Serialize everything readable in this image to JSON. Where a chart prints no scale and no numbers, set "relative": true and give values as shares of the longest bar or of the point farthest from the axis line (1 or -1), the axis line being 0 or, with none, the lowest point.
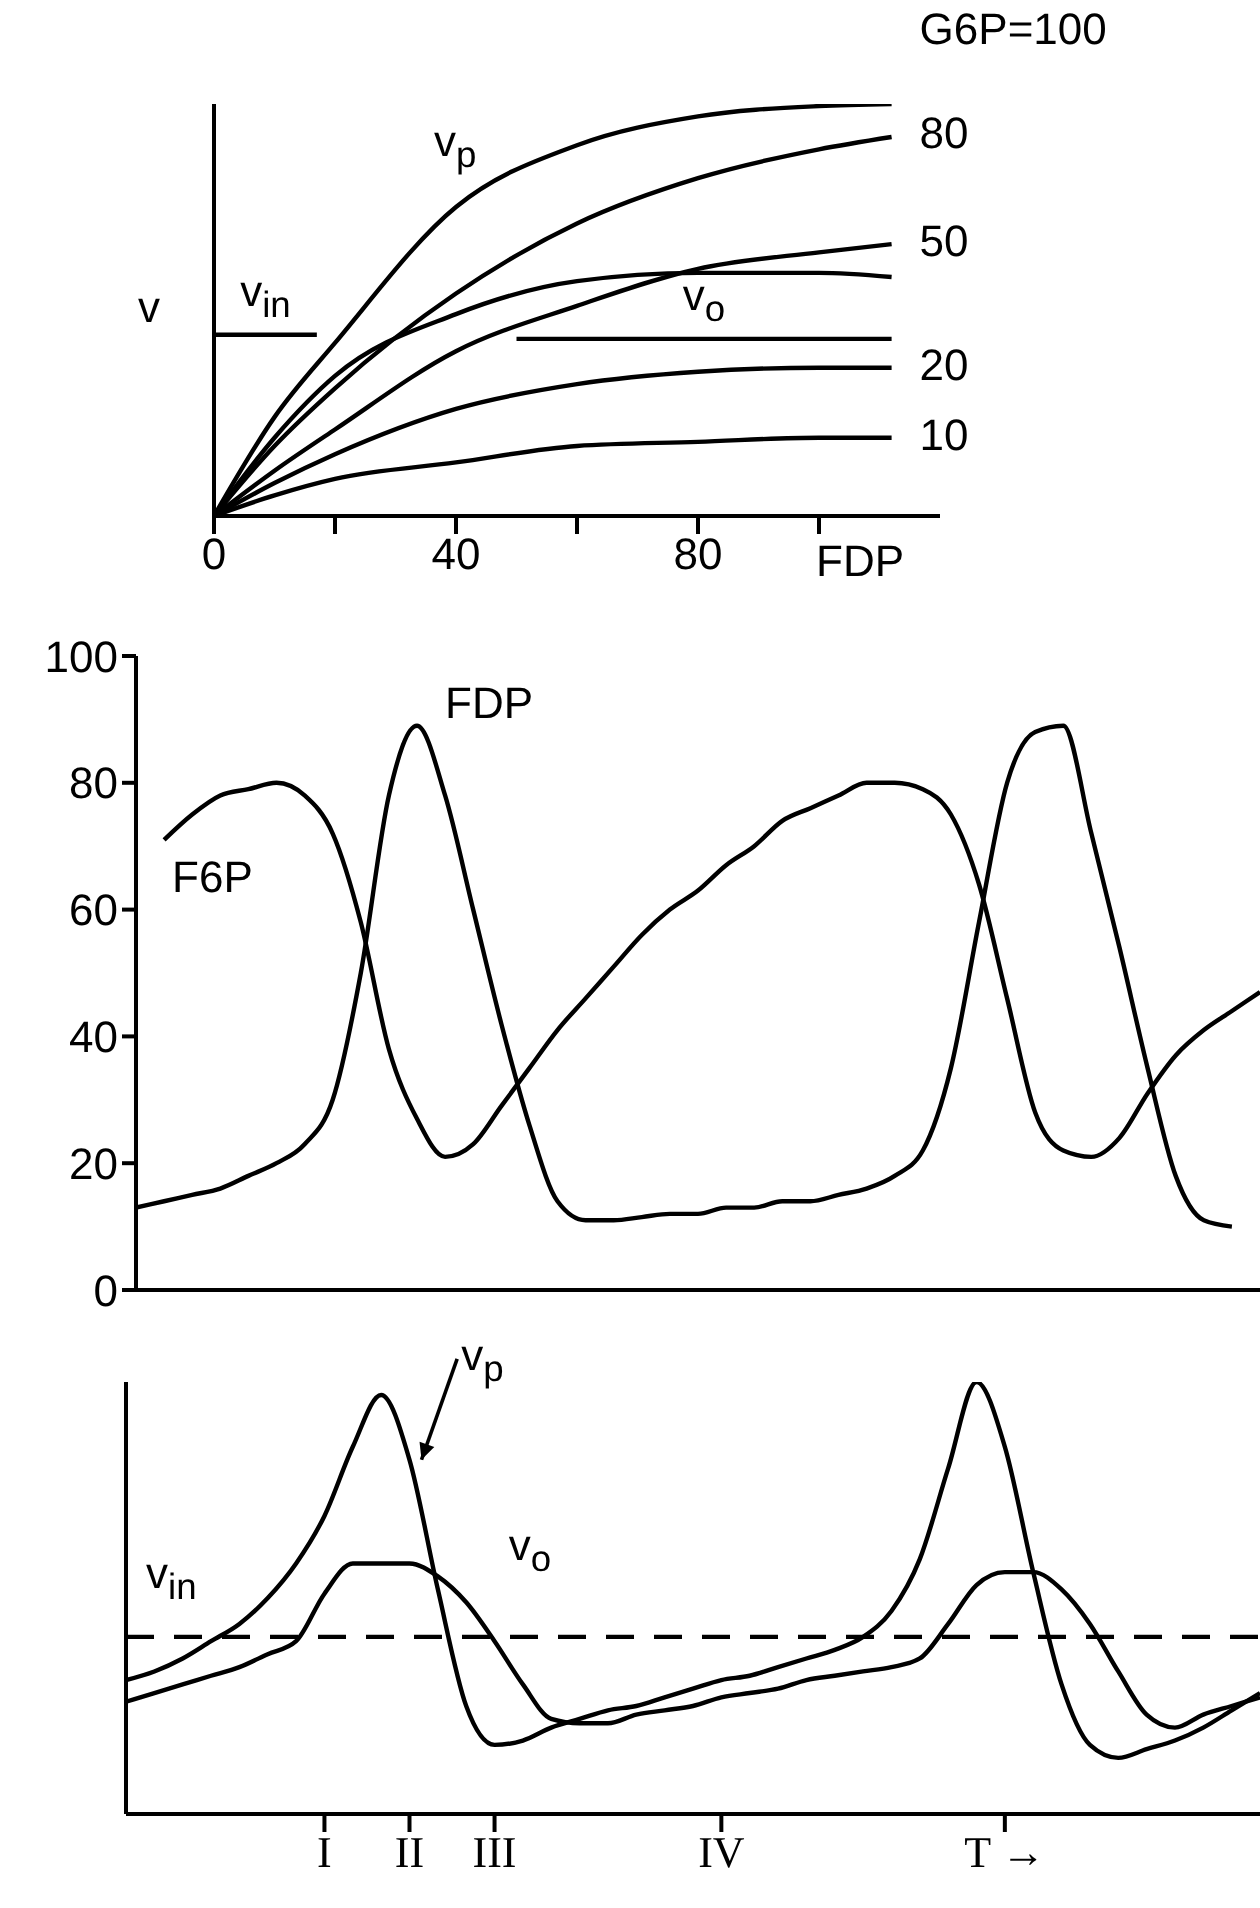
{
  "chart_data": [
    {
      "type": "line",
      "xlabel": "FDP",
      "ylabel": "v",
      "relative": true,
      "xlim": [
        0,
        120
      ],
      "xticks": [
        0,
        {
          "value": 20,
          "label": null
        },
        40,
        {
          "value": 60,
          "label": null
        },
        80,
        {
          "value": 100,
          "label": null
        }
      ],
      "annotations": [
        "v$_{p}$"
      ],
      "series": [
        {
          "name": "G6P=100",
          "color": "#000000",
          "x": [
            0,
            10,
            20,
            40,
            60,
            80,
            100,
            112
          ],
          "values": [
            0,
            0.24,
            0.42,
            0.75,
            0.9,
            0.97,
            0.995,
            1
          ]
        },
        {
          "name": "80",
          "color": "#000000",
          "x": [
            0,
            10,
            20,
            40,
            60,
            80,
            100,
            112
          ],
          "values": [
            0,
            0.17,
            0.31,
            0.54,
            0.71,
            0.82,
            0.89,
            0.92
          ]
        },
        {
          "name": "50",
          "color": "#000000",
          "x": [
            0,
            10,
            20,
            40,
            60,
            80,
            100,
            112
          ],
          "values": [
            0,
            0.11,
            0.21,
            0.4,
            0.51,
            0.6,
            0.64,
            0.66
          ]
        },
        {
          "color": "#000000",
          "x": [
            0,
            10,
            20,
            40,
            60,
            80,
            100,
            112
          ],
          "values": [
            0,
            0.19,
            0.34,
            0.49,
            0.57,
            0.59,
            0.59,
            0.58
          ]
        },
        {
          "name": "20",
          "color": "#000000",
          "x": [
            0,
            10,
            20,
            40,
            60,
            80,
            100,
            112
          ],
          "values": [
            0,
            0.08,
            0.15,
            0.26,
            0.32,
            0.35,
            0.36,
            0.36
          ]
        },
        {
          "name": "10",
          "color": "#000000",
          "x": [
            0,
            10,
            20,
            40,
            60,
            80,
            100,
            112
          ],
          "values": [
            0,
            0.05,
            0.09,
            0.13,
            0.17,
            0.18,
            0.19,
            0.19
          ]
        },
        {
          "name": "v$_{in}$",
          "color": "#000000",
          "x": [
            0,
            17
          ],
          "values": [
            0.44,
            0.44
          ]
        },
        {
          "name": "v$_{o}$",
          "color": "#000000",
          "x": [
            50,
            112
          ],
          "values": [
            0.43,
            0.43
          ]
        }
      ]
    },
    {
      "type": "line",
      "ylim": [
        0,
        100
      ],
      "yticks": [
        0,
        20,
        40,
        60,
        80,
        100
      ],
      "categories": [
        null,
        null,
        null,
        null,
        null,
        null,
        null,
        null,
        null,
        null,
        null,
        null,
        null,
        null,
        null,
        null,
        null,
        null,
        null,
        null,
        null,
        null,
        null,
        null,
        null,
        null,
        null,
        null,
        null,
        null,
        null,
        null,
        null,
        null,
        null,
        null,
        null,
        null,
        null,
        null,
        null
      ],
      "series": [
        {
          "name": "F6P",
          "color": "#000000",
          "values": [
            null,
            71,
            75,
            78,
            79,
            80,
            78,
            72,
            58,
            38,
            27,
            21,
            23,
            29,
            35,
            41,
            46,
            51,
            56,
            60,
            63,
            67,
            70,
            74,
            76,
            78,
            80,
            80,
            79,
            75,
            64,
            46,
            28,
            22,
            21,
            24,
            31,
            37,
            41,
            44,
            47
          ]
        },
        {
          "name": "FDP",
          "color": "#000000",
          "values": [
            13,
            14,
            15,
            16,
            18,
            20,
            23,
            30,
            50,
            78,
            89,
            78,
            60,
            42,
            26,
            14,
            11,
            11,
            11.5,
            12,
            12,
            13,
            13,
            14,
            14,
            15,
            16,
            18,
            22,
            35,
            58,
            80,
            88,
            89,
            72,
            54,
            35,
            18,
            11,
            10,
            null
          ]
        }
      ]
    },
    {
      "type": "line",
      "relative": true,
      "categories": [
        null,
        null,
        null,
        null,
        null,
        null,
        null,
        "I",
        null,
        null,
        "II",
        null,
        null,
        "III",
        null,
        null,
        null,
        null,
        null,
        null,
        null,
        "IV",
        null,
        null,
        null,
        null,
        null,
        null,
        null,
        null,
        null,
        "T →",
        null,
        null,
        null,
        null,
        null,
        null,
        null,
        null,
        null
      ],
      "series": [
        {
          "name": "v$_{p}$",
          "color": "#000000",
          "values": [
            0.31,
            0.33,
            0.36,
            0.4,
            0.44,
            0.5,
            0.58,
            0.69,
            0.85,
            0.97,
            0.82,
            0.52,
            0.25,
            0.16,
            0.17,
            0.2,
            0.22,
            0.24,
            0.25,
            0.27,
            0.29,
            0.31,
            0.32,
            0.34,
            0.36,
            0.38,
            0.41,
            0.47,
            0.59,
            0.8,
            1,
            0.85,
            0.56,
            0.3,
            0.16,
            0.13,
            0.15,
            0.17,
            0.2,
            0.24,
            0.28
          ]
        },
        {
          "name": "v$_{o}$",
          "color": "#000000",
          "values": [
            0.26,
            0.28,
            0.3,
            0.32,
            0.34,
            0.37,
            0.4,
            0.51,
            0.58,
            0.58,
            0.58,
            0.55,
            0.49,
            0.4,
            0.3,
            0.22,
            0.21,
            0.21,
            0.23,
            0.24,
            0.25,
            0.27,
            0.28,
            0.29,
            0.31,
            0.32,
            0.33,
            0.34,
            0.36,
            0.44,
            0.53,
            0.56,
            0.56,
            0.52,
            0.44,
            0.33,
            0.23,
            0.2,
            0.23,
            0.25,
            0.27
          ]
        },
        {
          "name": "v$_{in}$",
          "color": "#000000",
          "line_style": "dashed",
          "values": [
            0.41,
            0.41,
            0.41,
            0.41,
            0.41,
            0.41,
            0.41,
            0.41,
            0.41,
            0.41,
            0.41,
            0.41,
            0.41,
            0.41,
            0.41,
            0.41,
            0.41,
            0.41,
            0.41,
            0.41,
            0.41,
            0.41,
            0.41,
            0.41,
            0.41,
            0.41,
            0.41,
            0.41,
            0.41,
            0.41,
            0.41,
            0.41,
            0.41,
            0.41,
            0.41,
            0.41,
            0.41,
            0.41,
            0.41,
            0.41,
            0.41
          ]
        }
      ]
    }
  ]
}
